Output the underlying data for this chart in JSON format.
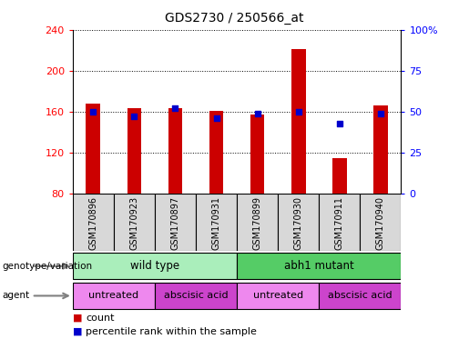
{
  "title": "GDS2730 / 250566_at",
  "samples": [
    "GSM170896",
    "GSM170923",
    "GSM170897",
    "GSM170931",
    "GSM170899",
    "GSM170930",
    "GSM170911",
    "GSM170940"
  ],
  "counts": [
    168,
    163,
    163,
    161,
    157,
    221,
    115,
    166
  ],
  "percentiles": [
    50,
    47,
    52,
    46,
    49,
    50,
    43,
    49
  ],
  "ylim_left": [
    80,
    240
  ],
  "ylim_right": [
    0,
    100
  ],
  "yticks_left": [
    80,
    120,
    160,
    200,
    240
  ],
  "yticks_right": [
    0,
    25,
    50,
    75,
    100
  ],
  "ytick_labels_right": [
    "0",
    "25",
    "50",
    "75",
    "100%"
  ],
  "bar_color": "#cc0000",
  "dot_color": "#0000cc",
  "bar_width": 0.35,
  "dot_size": 25,
  "grid_color": "black",
  "genotype_groups": [
    {
      "label": "wild type",
      "start": 0,
      "end": 3,
      "color": "#aaeebb"
    },
    {
      "label": "abh1 mutant",
      "start": 4,
      "end": 7,
      "color": "#55cc66"
    }
  ],
  "agent_groups": [
    {
      "label": "untreated",
      "start": 0,
      "end": 1,
      "color": "#ee88ee"
    },
    {
      "label": "abscisic acid",
      "start": 2,
      "end": 3,
      "color": "#cc44cc"
    },
    {
      "label": "untreated",
      "start": 4,
      "end": 5,
      "color": "#ee88ee"
    },
    {
      "label": "abscisic acid",
      "start": 6,
      "end": 7,
      "color": "#cc44cc"
    }
  ],
  "legend_count_color": "#cc0000",
  "legend_dot_color": "#0000cc",
  "xlabel_genotype": "genotype/variation",
  "xlabel_agent": "agent",
  "background_color": "#ffffff",
  "plot_bg_color": "#ffffff",
  "xticklabel_bg": "#d8d8d8"
}
